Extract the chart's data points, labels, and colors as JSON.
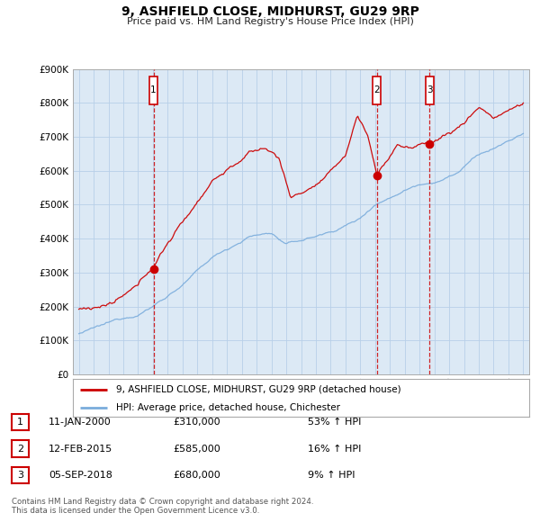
{
  "title": "9, ASHFIELD CLOSE, MIDHURST, GU29 9RP",
  "subtitle": "Price paid vs. HM Land Registry's House Price Index (HPI)",
  "legend_line1": "9, ASHFIELD CLOSE, MIDHURST, GU29 9RP (detached house)",
  "legend_line2": "HPI: Average price, detached house, Chichester",
  "footer1": "Contains HM Land Registry data © Crown copyright and database right 2024.",
  "footer2": "This data is licensed under the Open Government Licence v3.0.",
  "transactions": [
    {
      "num": 1,
      "date": "11-JAN-2000",
      "price": "£310,000",
      "pct": "53%",
      "dir": "↑",
      "ref": "HPI",
      "year": 2000.04
    },
    {
      "num": 2,
      "date": "12-FEB-2015",
      "price": "£585,000",
      "pct": "16%",
      "dir": "↑",
      "ref": "HPI",
      "year": 2015.12
    },
    {
      "num": 3,
      "date": "05-SEP-2018",
      "price": "£680,000",
      "pct": "9%",
      "dir": "↑",
      "ref": "HPI",
      "year": 2018.67
    }
  ],
  "sale_years": [
    2000.04,
    2015.12,
    2018.67
  ],
  "sale_prices": [
    310000,
    585000,
    680000
  ],
  "price_color": "#cc0000",
  "hpi_color": "#7aacdc",
  "vline_color": "#cc0000",
  "bg_color": "#ffffff",
  "plot_bg": "#dce9f5",
  "grid_color": "#b8cfe8",
  "ylim": [
    0,
    900000
  ],
  "yticks": [
    0,
    100000,
    200000,
    300000,
    400000,
    500000,
    600000,
    700000,
    800000,
    900000
  ],
  "xlim_start": 1994.6,
  "xlim_end": 2025.4,
  "xticks": [
    1995,
    1996,
    1997,
    1998,
    1999,
    2000,
    2001,
    2002,
    2003,
    2004,
    2005,
    2006,
    2007,
    2008,
    2009,
    2010,
    2011,
    2012,
    2013,
    2014,
    2015,
    2016,
    2017,
    2018,
    2019,
    2020,
    2021,
    2022,
    2023,
    2024,
    2025
  ]
}
